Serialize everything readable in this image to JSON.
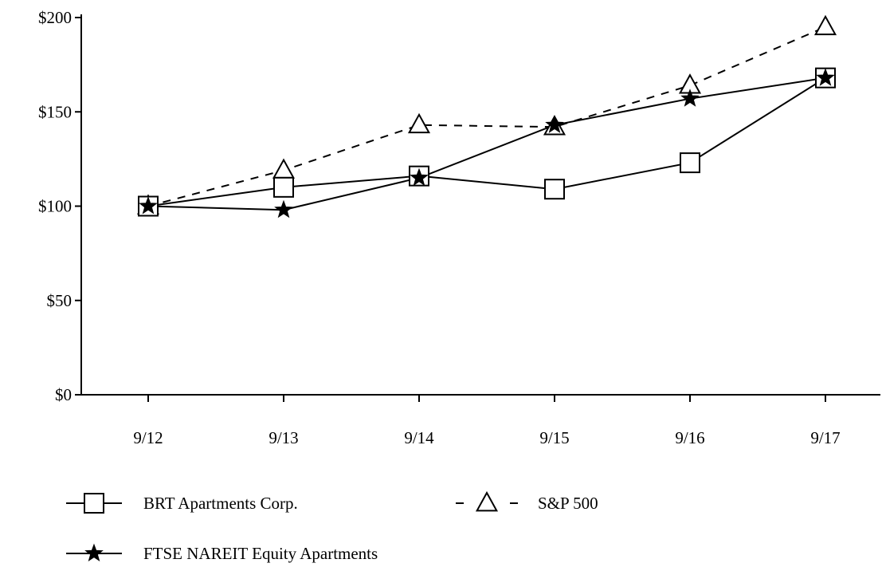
{
  "chart_data": {
    "type": "line",
    "title": "",
    "xlabel": "",
    "ylabel": "",
    "categories": [
      "9/12",
      "9/13",
      "9/14",
      "9/15",
      "9/16",
      "9/17"
    ],
    "y_ticks": [
      "$0",
      "$50",
      "$100",
      "$150",
      "$200"
    ],
    "y_tick_values": [
      0,
      50,
      100,
      150,
      200
    ],
    "ylim": [
      0,
      200
    ],
    "grid": false,
    "legend_position": "bottom",
    "series": [
      {
        "name": "BRT Apartments Corp.",
        "values": [
          100,
          110,
          116,
          109,
          123,
          168
        ],
        "marker": "square",
        "line_style": "solid",
        "color": "#000000"
      },
      {
        "name": "S&P 500",
        "values": [
          100,
          119,
          143,
          142,
          164,
          195
        ],
        "marker": "triangle",
        "line_style": "dashed",
        "color": "#000000"
      },
      {
        "name": "FTSE NAREIT Equity Apartments",
        "values": [
          100,
          98,
          115,
          143,
          157,
          168
        ],
        "marker": "star",
        "line_style": "solid",
        "color": "#000000"
      }
    ]
  }
}
